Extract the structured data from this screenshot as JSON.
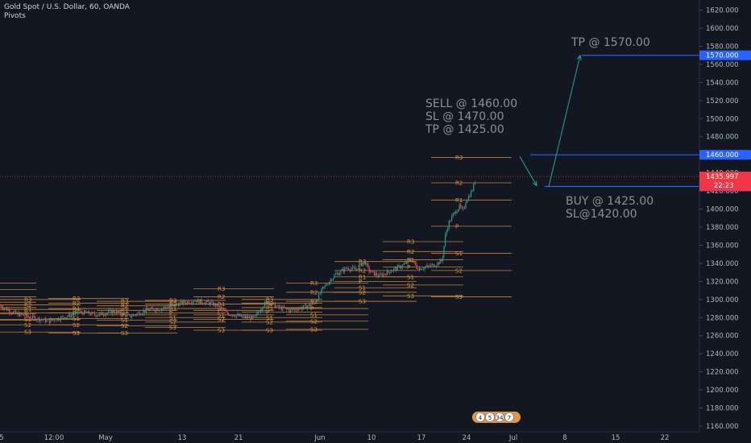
{
  "header": {
    "symbol_line": "Gold Spot / U.S. Dollar, 60, OANDA",
    "indicator": "Pivots"
  },
  "colors": {
    "background": "#131722",
    "pivot": "#e3963e",
    "trade_line": "#2962ff",
    "arrow": "#26a69a",
    "current_price": "#f23645",
    "up_candle": "#26a69a",
    "down_candle": "#ef5350"
  },
  "chart_data": {
    "type": "candlestick",
    "y_axis": {
      "range": [
        1155,
        1625
      ],
      "ticks": [
        1160,
        1180,
        1200,
        1220,
        1240,
        1260,
        1280,
        1300,
        1320,
        1340,
        1360,
        1380,
        1400,
        1420,
        1440,
        1460,
        1480,
        1500,
        1520,
        1540,
        1560,
        1580,
        1600,
        1620
      ],
      "tick_labels": [
        "1160.000",
        "1180.000",
        "1200.000",
        "1220.000",
        "1240.000",
        "1260.000",
        "1280.000",
        "1300.000",
        "1320.000",
        "1340.000",
        "1360.000",
        "1380.000",
        "1400.000",
        "1420.000",
        "1440.000",
        "1460.000",
        "1480.000",
        "1500.000",
        "1520.000",
        "1540.000",
        "1560.000",
        "1580.000",
        "1600.000",
        "1620.000"
      ]
    },
    "x_axis": {
      "tick_labels": [
        "5",
        "12:00",
        "May",
        "13",
        "21",
        "Jun",
        "10",
        "17",
        "24",
        "Jul",
        "8",
        "15",
        "22"
      ]
    },
    "price_series": {
      "anchors": [
        [
          0,
          1293
        ],
        [
          8,
          1289
        ],
        [
          20,
          1284
        ],
        [
          40,
          1280
        ],
        [
          60,
          1276
        ],
        [
          80,
          1281
        ],
        [
          100,
          1286
        ],
        [
          120,
          1283
        ],
        [
          140,
          1287
        ],
        [
          160,
          1281
        ],
        [
          180,
          1288
        ],
        [
          200,
          1290
        ],
        [
          220,
          1295
        ],
        [
          240,
          1299
        ],
        [
          260,
          1296
        ],
        [
          270,
          1293
        ],
        [
          280,
          1285
        ],
        [
          300,
          1281
        ],
        [
          315,
          1279
        ],
        [
          325,
          1293
        ],
        [
          332,
          1298
        ],
        [
          345,
          1291
        ],
        [
          360,
          1288
        ],
        [
          375,
          1291
        ],
        [
          390,
          1296
        ],
        [
          400,
          1312
        ],
        [
          415,
          1327
        ],
        [
          430,
          1335
        ],
        [
          440,
          1333
        ],
        [
          452,
          1342
        ],
        [
          458,
          1331
        ],
        [
          470,
          1326
        ],
        [
          480,
          1330
        ],
        [
          490,
          1334
        ],
        [
          500,
          1338
        ],
        [
          510,
          1344
        ],
        [
          518,
          1334
        ],
        [
          530,
          1336
        ],
        [
          540,
          1339
        ],
        [
          548,
          1343
        ],
        [
          552,
          1370
        ],
        [
          556,
          1384
        ],
        [
          562,
          1394
        ],
        [
          566,
          1399
        ],
        [
          570,
          1403
        ],
        [
          574,
          1397
        ],
        [
          578,
          1410
        ],
        [
          582,
          1415
        ],
        [
          586,
          1422
        ],
        [
          590,
          1434
        ]
      ]
    },
    "pivot_levels": [
      {
        "x1": 0,
        "x2": 45,
        "levels": [
          {
            "label": "",
            "y": 1318
          },
          {
            "label": "",
            "y": 1311
          },
          {
            "label": "",
            "y": 1303
          },
          {
            "label": "",
            "y": 1297
          },
          {
            "label": "",
            "y": 1291
          },
          {
            "label": "",
            "y": 1284
          },
          {
            "label": "",
            "y": 1277
          }
        ]
      },
      {
        "x1": 0,
        "x2": 100,
        "levels": [
          {
            "label": "R3",
            "y": 1300
          },
          {
            "label": "R2",
            "y": 1294
          },
          {
            "label": "R1",
            "y": 1289
          },
          {
            "label": "P",
            "y": 1285
          },
          {
            "label": "S1",
            "y": 1278
          },
          {
            "label": "S2",
            "y": 1272
          },
          {
            "label": "S3",
            "y": 1264
          }
        ]
      },
      {
        "x1": 60,
        "x2": 160,
        "levels": [
          {
            "label": "R3",
            "y": 1301
          },
          {
            "label": "R2",
            "y": 1296
          },
          {
            "label": "R1",
            "y": 1290
          },
          {
            "label": "P",
            "y": 1285
          },
          {
            "label": "S1",
            "y": 1279
          },
          {
            "label": "S2",
            "y": 1272
          },
          {
            "label": "S3",
            "y": 1263
          }
        ]
      },
      {
        "x1": 120,
        "x2": 220,
        "levels": [
          {
            "label": "R3",
            "y": 1298
          },
          {
            "label": "R2",
            "y": 1293
          },
          {
            "label": "R1",
            "y": 1288
          },
          {
            "label": "P",
            "y": 1283
          },
          {
            "label": "S1",
            "y": 1277
          },
          {
            "label": "S2",
            "y": 1271
          },
          {
            "label": "S3",
            "y": 1263
          }
        ]
      },
      {
        "x1": 180,
        "x2": 280,
        "levels": [
          {
            "label": "R3",
            "y": 1299
          },
          {
            "label": "R2",
            "y": 1295
          },
          {
            "label": "R1",
            "y": 1290
          },
          {
            "label": "P",
            "y": 1285
          },
          {
            "label": "S1",
            "y": 1280
          },
          {
            "label": "S2",
            "y": 1275
          },
          {
            "label": "S3",
            "y": 1269
          }
        ]
      },
      {
        "x1": 240,
        "x2": 340,
        "levels": [
          {
            "label": "R3",
            "y": 1312
          },
          {
            "label": "R2",
            "y": 1303
          },
          {
            "label": "R1",
            "y": 1295
          },
          {
            "label": "P",
            "y": 1288
          },
          {
            "label": "S1",
            "y": 1283
          },
          {
            "label": "S2",
            "y": 1278
          },
          {
            "label": "S3",
            "y": 1266
          }
        ]
      },
      {
        "x1": 300,
        "x2": 400,
        "levels": [
          {
            "label": "R3",
            "y": 1300
          },
          {
            "label": "R2",
            "y": 1296
          },
          {
            "label": "R1",
            "y": 1291
          },
          {
            "label": "P",
            "y": 1286
          },
          {
            "label": "S1",
            "y": 1280
          },
          {
            "label": "S2",
            "y": 1275
          },
          {
            "label": "S3",
            "y": 1266
          }
        ]
      },
      {
        "x1": 355,
        "x2": 457,
        "levels": [
          {
            "label": "R3",
            "y": 1318
          },
          {
            "label": "R2",
            "y": 1308
          },
          {
            "label": "R1",
            "y": 1298
          },
          {
            "label": "P",
            "y": 1290
          },
          {
            "label": "S1",
            "y": 1283
          },
          {
            "label": "S2",
            "y": 1276
          },
          {
            "label": "S3",
            "y": 1267
          }
        ]
      },
      {
        "x1": 415,
        "x2": 517,
        "levels": [
          {
            "label": "R3",
            "y": 1342
          },
          {
            "label": "R2",
            "y": 1332
          },
          {
            "label": "R1",
            "y": 1325
          },
          {
            "label": "P",
            "y": 1320
          },
          {
            "label": "S1",
            "y": 1313
          },
          {
            "label": "S2",
            "y": 1308
          },
          {
            "label": "S3",
            "y": 1298
          }
        ]
      },
      {
        "x1": 475,
        "x2": 575,
        "levels": [
          {
            "label": "R3",
            "y": 1364
          },
          {
            "label": "R2",
            "y": 1353
          },
          {
            "label": "R1",
            "y": 1344
          },
          {
            "label": "P",
            "y": 1336
          },
          {
            "label": "S1",
            "y": 1325
          },
          {
            "label": "S2",
            "y": 1316
          },
          {
            "label": "S3",
            "y": 1304
          }
        ]
      },
      {
        "x1": 535,
        "x2": 635,
        "levels": [
          {
            "label": "R3",
            "y": 1457
          },
          {
            "label": "R2",
            "y": 1429
          },
          {
            "label": "R1",
            "y": 1410
          },
          {
            "label": "P",
            "y": 1381
          },
          {
            "label": "S1",
            "y": 1351
          },
          {
            "label": "S2",
            "y": 1332
          },
          {
            "label": "S3",
            "y": 1303
          }
        ]
      }
    ],
    "current_price": {
      "value": 1435.997,
      "label": "1435.997",
      "countdown": "22:23"
    },
    "trade_levels": [
      {
        "name": "sell",
        "value": 1460.0,
        "label": "1460.000"
      },
      {
        "name": "buy",
        "value": 1425.0,
        "label": "1425.000"
      },
      {
        "name": "tp",
        "value": 1570.0,
        "label": "1570.000"
      }
    ],
    "annotations": {
      "sell_note": [
        "SELL @ 1460.00",
        "SL @ 1470.00",
        "TP @ 1425.00"
      ],
      "buy_note": [
        "BUY @ 1425.00",
        "SL@1420.00"
      ],
      "tp_note": "TP @ 1570.00"
    },
    "event_badges": [
      "4",
      "5",
      "34",
      "7"
    ]
  }
}
